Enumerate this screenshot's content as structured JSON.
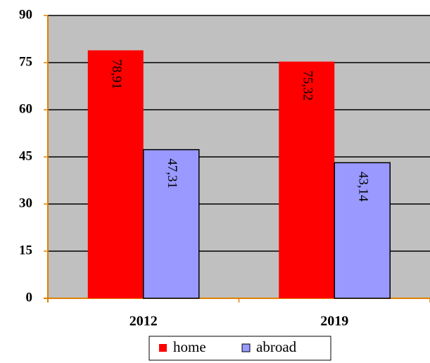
{
  "chart_data": {
    "type": "bar",
    "categories": [
      "2012",
      "2019"
    ],
    "series": [
      {
        "name": "home",
        "color": "#ff0000",
        "values": [
          78.91,
          75.32
        ],
        "value_labels": [
          "78,91",
          "75,32"
        ]
      },
      {
        "name": "abroad",
        "color": "#9999ff",
        "values": [
          47.31,
          43.14
        ],
        "value_labels": [
          "47,31",
          "43,14"
        ]
      }
    ],
    "ylim": [
      0,
      90
    ],
    "yticks": [
      0,
      15,
      30,
      45,
      60,
      75,
      90
    ],
    "grid": true,
    "legend": "bottom"
  }
}
